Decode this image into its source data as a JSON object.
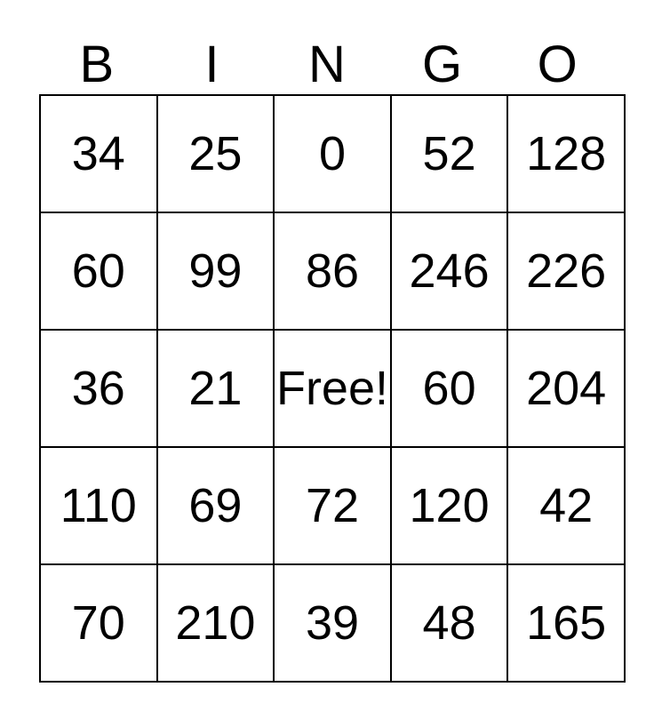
{
  "card": {
    "header": {
      "letters": [
        "B",
        "I",
        "N",
        "G",
        "O"
      ]
    },
    "grid": {
      "rows": [
        [
          "34",
          "25",
          "0",
          "52",
          "128"
        ],
        [
          "60",
          "99",
          "86",
          "246",
          "226"
        ],
        [
          "36",
          "21",
          "Free!",
          "60",
          "204"
        ],
        [
          "110",
          "69",
          "72",
          "120",
          "42"
        ],
        [
          "70",
          "210",
          "39",
          "48",
          "165"
        ]
      ],
      "free_cell_label": "Free!"
    }
  },
  "colors": {
    "background": "#ffffff",
    "border": "#000000",
    "text": "#000000"
  }
}
